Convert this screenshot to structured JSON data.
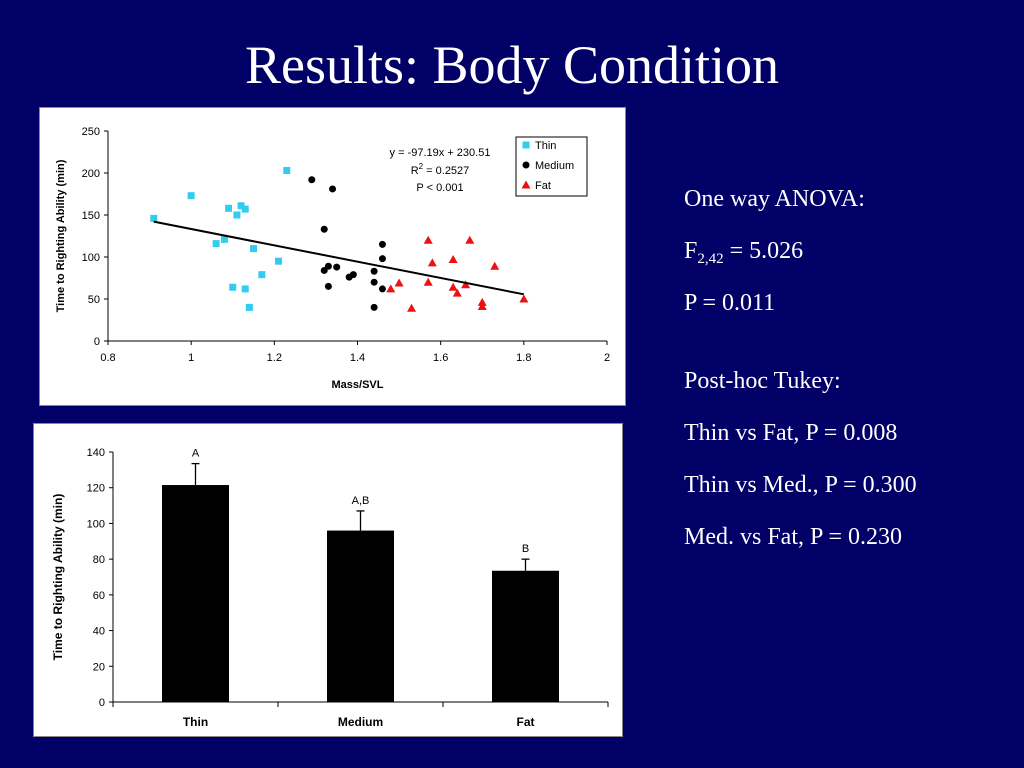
{
  "title": "Results: Body Condition",
  "stats": {
    "anova_title": "One way ANOVA:",
    "f_prefix": "F",
    "f_sub": "2,42",
    "f_value": " = 5.026",
    "anova_p": "P = 0.011",
    "tukey_title": "Post-hoc Tukey:",
    "tukey_lines": [
      "Thin vs Fat, P = 0.008",
      "Thin vs Med., P = 0.300",
      "Med. vs Fat, P = 0.230"
    ]
  },
  "colors": {
    "background": "#000066",
    "thin": "#33ccee",
    "medium": "#000000",
    "fat": "#ee1111",
    "bar": "#000000"
  },
  "chart_data": [
    {
      "type": "scatter",
      "xlabel": "Mass/SVL",
      "ylabel": "Time to Righting Ability (min)",
      "xlim": [
        0.8,
        2
      ],
      "ylim": [
        0,
        250
      ],
      "xticks": [
        "0.8",
        "1",
        "1.2",
        "1.4",
        "1.6",
        "1.8",
        "2"
      ],
      "yticks": [
        "0",
        "50",
        "100",
        "150",
        "200",
        "250"
      ],
      "grid": false,
      "legend": "top-right",
      "annotation": {
        "equation": "y = -97.19x + 230.51",
        "r2_label": "R",
        "r2_sup": "2",
        "r2_value": " = 0.2527",
        "p_text": "P < 0.001"
      },
      "trendline": {
        "slope": -97.19,
        "intercept": 230.51,
        "x_range": [
          0.91,
          1.8
        ]
      },
      "series": [
        {
          "name": "Thin",
          "marker": "square",
          "points": [
            [
              0.91,
              146
            ],
            [
              1.0,
              173
            ],
            [
              1.06,
              116
            ],
            [
              1.08,
              121
            ],
            [
              1.09,
              158
            ],
            [
              1.1,
              64
            ],
            [
              1.11,
              150
            ],
            [
              1.12,
              161
            ],
            [
              1.13,
              157
            ],
            [
              1.13,
              62
            ],
            [
              1.14,
              40
            ],
            [
              1.15,
              110
            ],
            [
              1.17,
              79
            ],
            [
              1.21,
              95
            ],
            [
              1.23,
              203
            ]
          ]
        },
        {
          "name": "Medium",
          "marker": "circle",
          "points": [
            [
              1.29,
              192
            ],
            [
              1.32,
              84
            ],
            [
              1.32,
              133
            ],
            [
              1.33,
              89
            ],
            [
              1.33,
              65
            ],
            [
              1.34,
              181
            ],
            [
              1.35,
              88
            ],
            [
              1.38,
              76
            ],
            [
              1.39,
              79
            ],
            [
              1.44,
              40
            ],
            [
              1.44,
              70
            ],
            [
              1.44,
              83
            ],
            [
              1.46,
              115
            ],
            [
              1.46,
              98
            ],
            [
              1.46,
              62
            ]
          ]
        },
        {
          "name": "Fat",
          "marker": "triangle",
          "points": [
            [
              1.48,
              62
            ],
            [
              1.5,
              69
            ],
            [
              1.53,
              39
            ],
            [
              1.57,
              120
            ],
            [
              1.57,
              70
            ],
            [
              1.58,
              93
            ],
            [
              1.63,
              97
            ],
            [
              1.63,
              64
            ],
            [
              1.64,
              57
            ],
            [
              1.66,
              67
            ],
            [
              1.67,
              120
            ],
            [
              1.7,
              46
            ],
            [
              1.7,
              41
            ],
            [
              1.73,
              89
            ],
            [
              1.8,
              50
            ]
          ]
        }
      ]
    },
    {
      "type": "bar",
      "ylabel": "Time to Righting Ability (min)",
      "ylim": [
        0,
        140
      ],
      "yticks": [
        "0",
        "20",
        "40",
        "60",
        "80",
        "100",
        "120",
        "140"
      ],
      "categories": [
        "Thin",
        "Medium",
        "Fat"
      ],
      "values": [
        121.5,
        96,
        73.5
      ],
      "errors": [
        12,
        11,
        6.5
      ],
      "group_labels": [
        "A",
        "A,B",
        "B"
      ]
    }
  ]
}
